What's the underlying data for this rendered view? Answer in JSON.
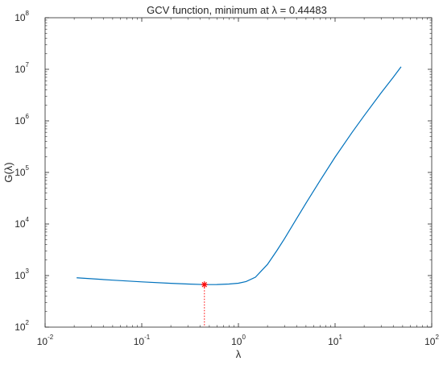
{
  "chart_data": {
    "type": "line",
    "title": "GCV function, minimum at λ = 0.44483",
    "xlabel": "λ",
    "ylabel": "G(λ)",
    "xscale": "log",
    "yscale": "log",
    "xlim": [
      0.01,
      100
    ],
    "ylim": [
      100,
      100000000
    ],
    "x_ticks": [
      {
        "base": "10",
        "exp": "-2"
      },
      {
        "base": "10",
        "exp": "-1"
      },
      {
        "base": "10",
        "exp": "0"
      },
      {
        "base": "10",
        "exp": "1"
      },
      {
        "base": "10",
        "exp": "2"
      }
    ],
    "y_ticks": [
      {
        "base": "10",
        "exp": "2"
      },
      {
        "base": "10",
        "exp": "3"
      },
      {
        "base": "10",
        "exp": "4"
      },
      {
        "base": "10",
        "exp": "5"
      },
      {
        "base": "10",
        "exp": "6"
      },
      {
        "base": "10",
        "exp": "7"
      },
      {
        "base": "10",
        "exp": "8"
      }
    ],
    "grid": false,
    "line_color": "#0072bd",
    "marker_color": "#ff0000",
    "series": [
      {
        "x": [
          0.0212,
          0.05,
          0.1,
          0.2,
          0.3,
          0.44483,
          0.6,
          0.8,
          1.0,
          1.2,
          1.5,
          2.0,
          2.5,
          3.0,
          4.0,
          5.0,
          7.0,
          10.0,
          15.0,
          20.0,
          30.0,
          40.0,
          48.2
        ],
        "y": [
          906,
          815,
          755,
          707,
          685,
          668,
          670,
          685,
          710,
          765,
          930,
          1650,
          3050,
          5200,
          12700,
          25300,
          69500,
          198000,
          598000,
          1260000,
          3510000,
          7010000,
          11200000
        ]
      }
    ],
    "minimum": {
      "x": 0.44483,
      "y": 668
    }
  }
}
